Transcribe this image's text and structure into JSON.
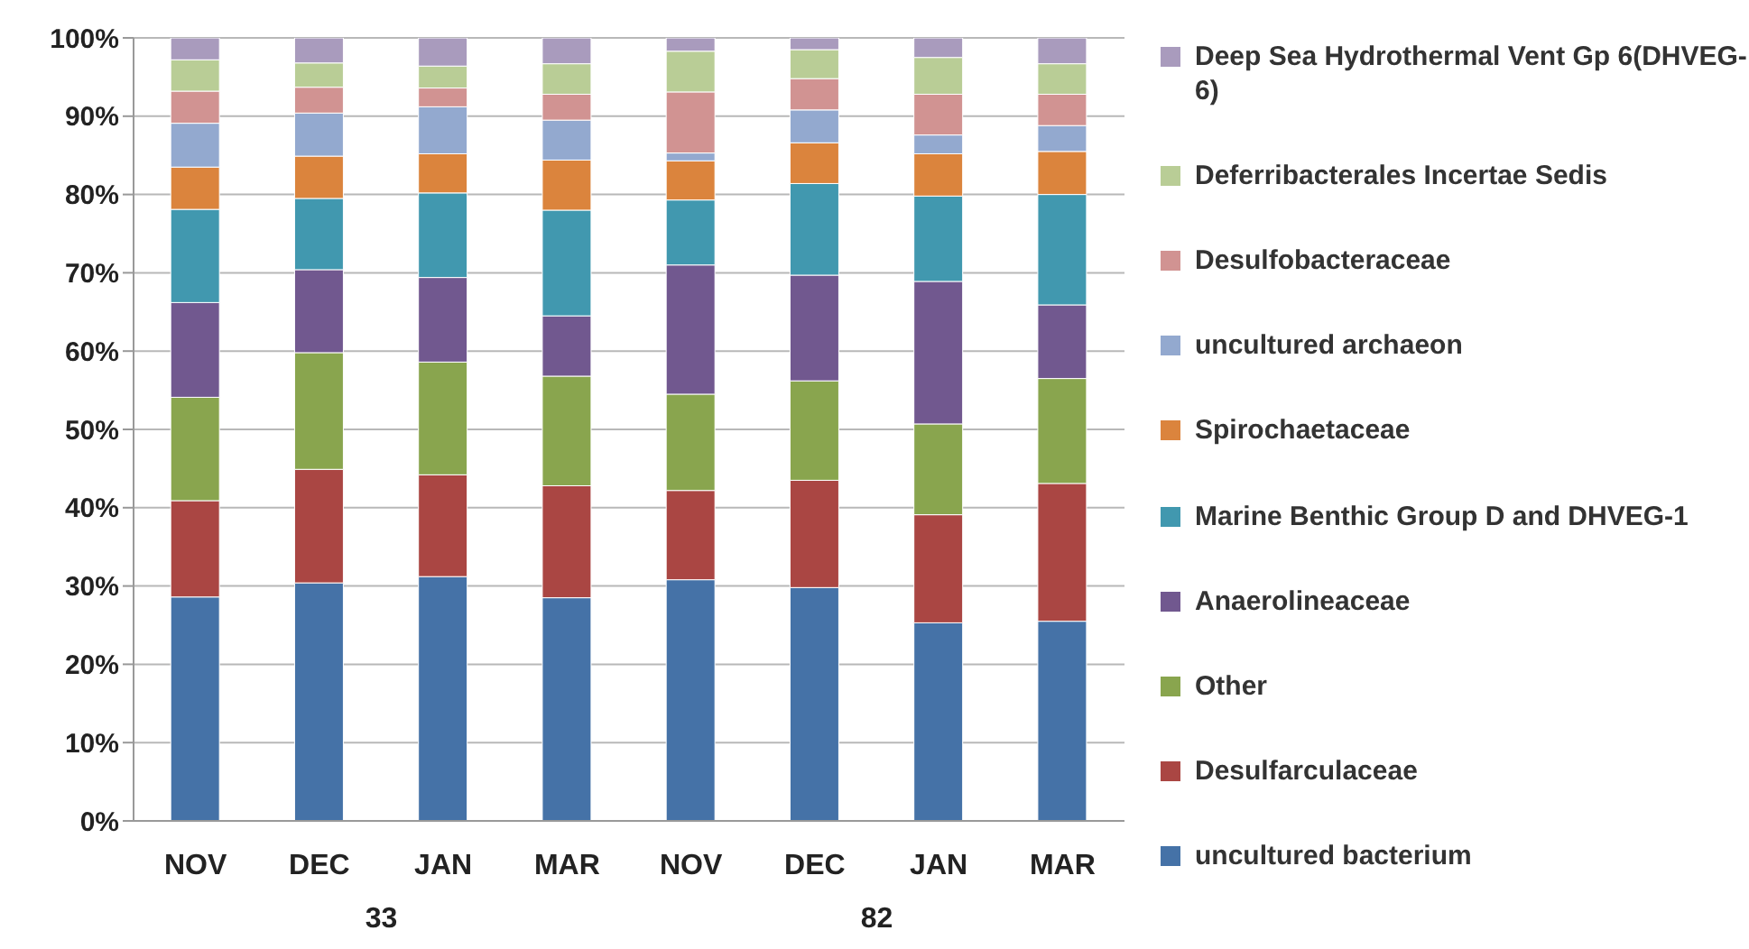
{
  "chart_data": {
    "type": "bar",
    "stacked": true,
    "categories": [
      "NOV",
      "DEC",
      "JAN",
      "MAR",
      "NOV",
      "DEC",
      "JAN",
      "MAR"
    ],
    "annotations": [
      "33",
      "82"
    ],
    "ylim": [
      0,
      100
    ],
    "yticks": [
      {
        "value": 0,
        "label": "0%"
      },
      {
        "value": 10,
        "label": "10%"
      },
      {
        "value": 20,
        "label": "20%"
      },
      {
        "value": 30,
        "label": "30%"
      },
      {
        "value": 40,
        "label": "40%"
      },
      {
        "value": 50,
        "label": "50%"
      },
      {
        "value": 60,
        "label": "60%"
      },
      {
        "value": 70,
        "label": "70%"
      },
      {
        "value": 80,
        "label": "80%"
      },
      {
        "value": 90,
        "label": "90%"
      },
      {
        "value": 100,
        "label": "100%"
      }
    ],
    "grid": "y",
    "legend": "right",
    "series": [
      {
        "name": "uncultured bacterium",
        "color": "#4572a7",
        "values": [
          28.6,
          30.4,
          31.2,
          28.5,
          30.8,
          29.8,
          25.3,
          25.5
        ]
      },
      {
        "name": "Desulfarculaceae",
        "color": "#aa4643",
        "values": [
          12.3,
          14.5,
          13.0,
          14.3,
          11.4,
          13.7,
          13.8,
          17.6
        ]
      },
      {
        "name": "Other",
        "color": "#89a54e",
        "values": [
          13.2,
          14.9,
          14.4,
          14.0,
          12.3,
          12.7,
          11.6,
          13.4
        ]
      },
      {
        "name": "Anaerolineaceae",
        "color": "#71588f",
        "values": [
          12.1,
          10.6,
          10.8,
          7.7,
          16.5,
          13.5,
          18.2,
          9.4
        ]
      },
      {
        "name": "Marine Benthic Group D and DHVEG-1",
        "color": "#4198af",
        "values": [
          11.9,
          9.1,
          10.8,
          13.5,
          8.3,
          11.7,
          10.9,
          14.1
        ]
      },
      {
        "name": "Spirochaetaceae",
        "color": "#db843d",
        "values": [
          5.4,
          5.4,
          5.0,
          6.4,
          5.0,
          5.2,
          5.4,
          5.5
        ]
      },
      {
        "name": "uncultured archaeon",
        "color": "#93a9cf",
        "values": [
          5.6,
          5.5,
          6.0,
          5.1,
          1.0,
          4.2,
          2.4,
          3.3
        ]
      },
      {
        "name": "Desulfobacteraceae",
        "color": "#d19392",
        "values": [
          4.1,
          3.3,
          2.4,
          3.3,
          7.8,
          4.0,
          5.2,
          4.0
        ]
      },
      {
        "name": "Deferribacterales Incertae Sedis",
        "color": "#b9cd96",
        "values": [
          4.0,
          3.1,
          2.8,
          3.9,
          5.2,
          3.7,
          4.7,
          3.9
        ]
      },
      {
        "name": "Deep Sea Hydrothermal Vent Gp 6(DHVEG-6)",
        "color": "#a99bbd",
        "values": [
          2.8,
          3.2,
          3.6,
          3.3,
          1.7,
          1.5,
          2.5,
          3.3
        ]
      }
    ]
  }
}
